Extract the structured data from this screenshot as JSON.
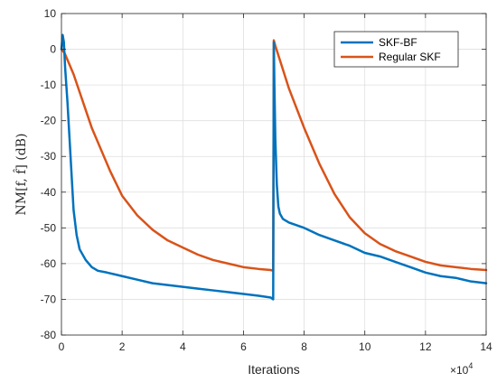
{
  "chart_data": {
    "type": "line",
    "xlabel": "Iterations",
    "ylabel": "NM[f, f̂] (dB)",
    "x_exponent_label": "×10",
    "x_exponent_power": "4",
    "xlim": [
      0,
      14
    ],
    "ylim": [
      -80,
      10
    ],
    "xticks": [
      0,
      2,
      4,
      6,
      8,
      10,
      12,
      14
    ],
    "xtick_labels": [
      "0",
      "2",
      "4",
      "6",
      "8",
      "10",
      "12",
      "14"
    ],
    "yticks": [
      10,
      0,
      -10,
      -20,
      -30,
      -40,
      -50,
      -60,
      -70,
      -80
    ],
    "ytick_labels": [
      "10",
      "0",
      "-10",
      "-20",
      "-30",
      "-40",
      "-50",
      "-60",
      "-70",
      "-80"
    ],
    "grid": true,
    "legend_placement": "top-right",
    "series": [
      {
        "name": "SKF-BF",
        "color": "#0072BD",
        "x": [
          0,
          0.04,
          0.08,
          0.12,
          0.2,
          0.3,
          0.4,
          0.5,
          0.6,
          0.8,
          1.0,
          1.2,
          1.5,
          2.0,
          2.5,
          3.0,
          3.5,
          4.0,
          4.5,
          5.0,
          5.5,
          6.0,
          6.5,
          6.9,
          6.98,
          7.0,
          7.02,
          7.05,
          7.1,
          7.15,
          7.2,
          7.3,
          7.5,
          8.0,
          8.5,
          9.0,
          9.5,
          10.0,
          10.5,
          11.0,
          11.5,
          12.0,
          12.5,
          13.0,
          13.5,
          14.0
        ],
        "y": [
          0,
          4,
          2,
          -5,
          -15,
          -30,
          -45,
          -52,
          -56,
          -59,
          -61,
          -62,
          -62.5,
          -63.5,
          -64.5,
          -65.5,
          -66,
          -66.5,
          -67,
          -67.5,
          -68,
          -68.5,
          -69,
          -69.5,
          -70,
          2,
          -10,
          -25,
          -38,
          -44,
          -46,
          -47.5,
          -48.5,
          -50,
          -52,
          -53.5,
          -55,
          -57,
          -58,
          -59.5,
          -61,
          -62.5,
          -63.5,
          -64,
          -65,
          -65.5
        ]
      },
      {
        "name": "Regular SKF",
        "color": "#D95319",
        "x": [
          0,
          0.1,
          0.2,
          0.4,
          0.6,
          0.8,
          1.0,
          1.3,
          1.6,
          2.0,
          2.5,
          3.0,
          3.5,
          4.0,
          4.5,
          5.0,
          5.5,
          6.0,
          6.5,
          6.9,
          6.98,
          7.0,
          7.05,
          7.2,
          7.5,
          8.0,
          8.5,
          9.0,
          9.5,
          10.0,
          10.5,
          11.0,
          11.5,
          12.0,
          12.5,
          13.0,
          13.5,
          14.0
        ],
        "y": [
          0,
          -1,
          -3,
          -7,
          -12,
          -17,
          -22,
          -28,
          -34,
          -41,
          -46.5,
          -50.5,
          -53.5,
          -55.5,
          -57.5,
          -59,
          -60,
          -61,
          -61.5,
          -61.8,
          -62,
          2.5,
          1,
          -3,
          -11,
          -22,
          -32,
          -40.5,
          -47,
          -51.5,
          -54.5,
          -56.5,
          -58,
          -59.5,
          -60.5,
          -61,
          -61.5,
          -61.8
        ]
      }
    ]
  }
}
